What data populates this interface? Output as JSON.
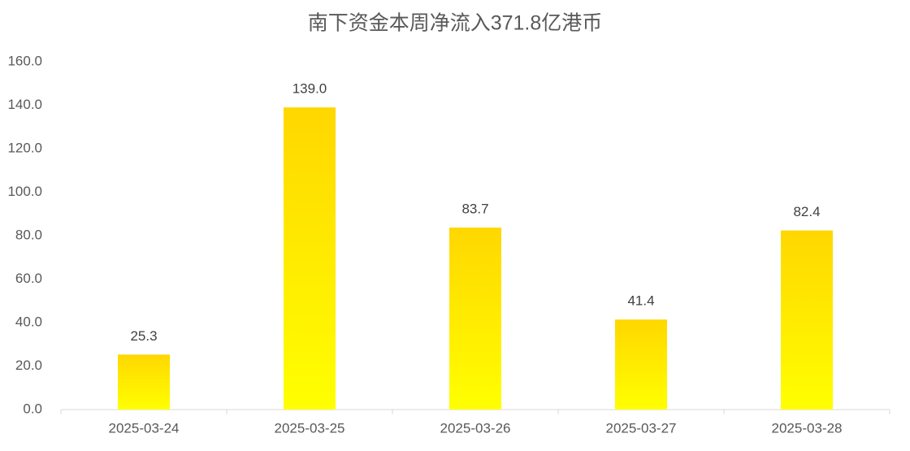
{
  "chart_data": {
    "type": "bar",
    "title": "南下资金本周净流入371.8亿港币",
    "categories": [
      "2025-03-24",
      "2025-03-25",
      "2025-03-26",
      "2025-03-27",
      "2025-03-28"
    ],
    "values": [
      25.3,
      139.0,
      83.7,
      41.4,
      82.4
    ],
    "value_labels": [
      "25.3",
      "139.0",
      "83.7",
      "41.4",
      "82.4"
    ],
    "color": "#ffd700",
    "ylim": [
      0,
      160
    ],
    "yticks": [
      {
        "value": 0,
        "label": "0.0"
      },
      {
        "value": 20,
        "label": "20.0"
      },
      {
        "value": 40,
        "label": "40.0"
      },
      {
        "value": 60,
        "label": "60.0"
      },
      {
        "value": 80,
        "label": "80.0"
      },
      {
        "value": 100,
        "label": "100.0"
      },
      {
        "value": 120,
        "label": "120.0"
      },
      {
        "value": 140,
        "label": "140.0"
      },
      {
        "value": 160,
        "label": "160.0"
      }
    ],
    "grid": false
  }
}
